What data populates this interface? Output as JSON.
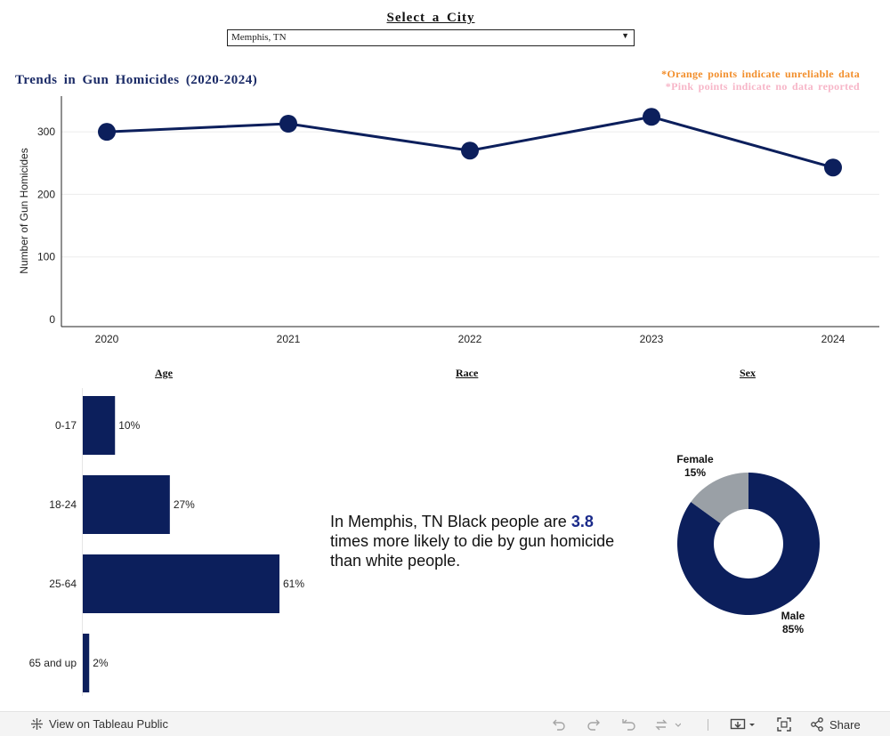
{
  "selector": {
    "title": "Select a City",
    "selected_city": "Memphis, TN"
  },
  "trend": {
    "title": "Trends in Gun Homicides (2020-2024)",
    "note_orange": "*Orange points indicate unreliable data",
    "note_pink": "*Pink points indicate no data reported"
  },
  "sections": {
    "age": "Age",
    "race": "Race",
    "sex": "Sex"
  },
  "race": {
    "prefix": "In Memphis, TN Black people are",
    "ratio": "3.8",
    "suffix": "times more likely to die by gun homicide than white people."
  },
  "toolbar": {
    "view_label": "View on Tableau Public",
    "share_label": "Share"
  },
  "colors": {
    "navy": "#0c1f5c",
    "grey": "#9aa0a6",
    "orange": "#f28e2b",
    "pink": "#f7b6c8"
  },
  "chart_data": [
    {
      "type": "line",
      "title": "Trends in Gun Homicides (2020-2024)",
      "xlabel": "",
      "ylabel": "Number of Gun Homicides",
      "x": [
        "2020",
        "2021",
        "2022",
        "2023",
        "2024"
      ],
      "values": [
        300,
        313,
        270,
        324,
        243
      ],
      "yticks": [
        0,
        100,
        200,
        300
      ],
      "ylim": [
        0,
        350
      ],
      "grid": true
    },
    {
      "type": "bar",
      "title": "Age",
      "orientation": "horizontal",
      "categories": [
        "0-17",
        "18-24",
        "25-64",
        "65 and up"
      ],
      "values": [
        10,
        27,
        61,
        2
      ],
      "labels": [
        "10%",
        "27%",
        "61%",
        "2%"
      ],
      "xlim": [
        0,
        61
      ]
    },
    {
      "type": "pie",
      "title": "Sex",
      "donut": true,
      "categories": [
        "Male",
        "Female"
      ],
      "values": [
        85,
        15
      ],
      "labels": [
        "85%",
        "15%"
      ]
    }
  ]
}
